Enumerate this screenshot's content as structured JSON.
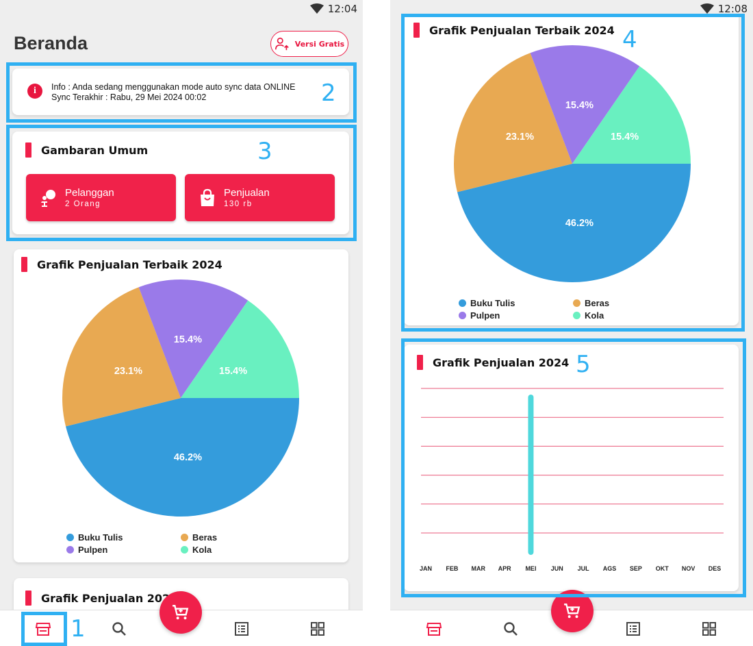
{
  "status_bar": {
    "time_left": "12:04",
    "time_right": "12:08",
    "wifi_icon": "wifi-icon"
  },
  "header": {
    "title": "Beranda",
    "versi_button_label": "Versi Gratis",
    "versi_icon": "user-upgrade-icon"
  },
  "info": {
    "icon": "info-icon",
    "line1": "Info : Anda sedang menggunakan mode auto sync data ONLINE",
    "line2": "Sync Terakhir : Rabu, 29 Mei 2024 00:02"
  },
  "overview": {
    "title": "Gambaran Umum",
    "stats": [
      {
        "label": "Pelanggan",
        "value": "2 Orang",
        "icon": "customer-icon"
      },
      {
        "label": "Penjualan",
        "value": "130 rb",
        "icon": "shopping-bag-icon"
      }
    ]
  },
  "pie_chart": {
    "title": "Grafik Penjualan Terbaik 2024"
  },
  "line_chart": {
    "title": "Grafik Penjualan 2024"
  },
  "chart_data": [
    {
      "type": "pie",
      "title": "Grafik Penjualan Terbaik 2024",
      "categories": [
        "Buku Tulis",
        "Beras",
        "Pulpen",
        "Kola"
      ],
      "values": [
        46.2,
        23.1,
        15.4,
        15.4
      ],
      "labels": [
        "46.2%",
        "23.1%",
        "15.4%",
        "15.4%"
      ],
      "colors": [
        "#349cdc",
        "#e8a952",
        "#9a7ae9",
        "#69f0c0"
      ],
      "legend": "bottom"
    },
    {
      "type": "bar",
      "title": "Grafik Penjualan 2024",
      "categories": [
        "JAN",
        "FEB",
        "MAR",
        "APR",
        "MEI",
        "JUN",
        "JUL",
        "AGS",
        "SEP",
        "OKT",
        "NOV",
        "DES"
      ],
      "values": [
        0,
        0,
        0,
        0,
        130,
        0,
        0,
        0,
        0,
        0,
        0,
        0
      ],
      "ylim": [
        0,
        130
      ],
      "grid": true,
      "gridlines": 6,
      "bar_color": "#4fd8dc",
      "grid_color": "#ea5a7a"
    }
  ],
  "annotations": [
    "1",
    "2",
    "3",
    "4",
    "5"
  ],
  "bottom_nav": {
    "items": [
      {
        "name": "home",
        "icon": "store-icon"
      },
      {
        "name": "search",
        "icon": "search-icon"
      },
      {
        "name": "list",
        "icon": "list-icon"
      },
      {
        "name": "menu",
        "icon": "grid-icon"
      }
    ],
    "fab_icon": "cart-icon"
  },
  "colors": {
    "accent": "#f0204a",
    "annotation": "#2fb0f2",
    "background": "#eeeeee"
  }
}
